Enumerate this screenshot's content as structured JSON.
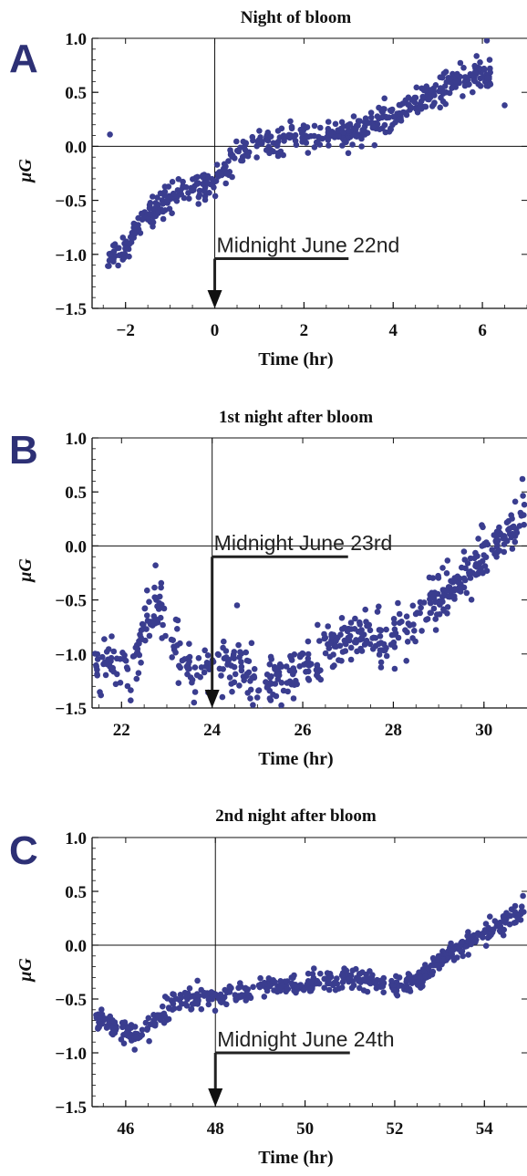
{
  "figure": {
    "colors": {
      "points": "#3a3d8f",
      "letters": "#2d3075",
      "axes": "#111111"
    }
  },
  "chart_data": [
    {
      "type": "scatter",
      "panel_label": "A",
      "title": "Night of bloom",
      "xlabel": "Time (hr)",
      "ylabel": "μG",
      "xlim": [
        -2.75,
        7.0
      ],
      "ylim": [
        -1.5,
        1.0
      ],
      "xticks": [
        -2,
        0,
        2,
        4,
        6
      ],
      "yticks": [
        1.0,
        0.5,
        0.0,
        -0.5,
        -1.0,
        -1.5
      ],
      "xtick_labels": [
        "−2",
        "0",
        "2",
        "4",
        "6"
      ],
      "ytick_labels": [
        "1.0",
        "0.5",
        "0.0",
        "−0.5",
        "−1.0",
        "−1.5"
      ],
      "reference_lines": {
        "vertical_x": 0,
        "horizontal_y": 0
      },
      "annotation": {
        "text": "Midnight June 22nd",
        "x": 0,
        "bar_end_x": 3.0,
        "bar_y": -1.04
      },
      "trend": {
        "x": [
          -2.5,
          -2.0,
          -1.5,
          -1.0,
          -0.5,
          0.0,
          0.5,
          1.0,
          2.0,
          3.0,
          4.0,
          5.0,
          5.5,
          6.0
        ],
        "y": [
          -1.12,
          -0.9,
          -0.65,
          -0.45,
          -0.37,
          -0.35,
          -0.1,
          0.02,
          0.1,
          0.12,
          0.28,
          0.5,
          0.62,
          0.65
        ]
      },
      "x_range": [
        -2.4,
        6.2
      ],
      "spread": 0.07,
      "n_points": 520,
      "outliers": {
        "x": [
          -2.35,
          6.1,
          6.5
        ],
        "y": [
          0.11,
          0.98,
          0.38
        ]
      }
    },
    {
      "type": "scatter",
      "panel_label": "B",
      "title": "1st night after bloom",
      "xlabel": "Time (hr)",
      "ylabel": "μG",
      "xlim": [
        21.35,
        30.95
      ],
      "ylim": [
        -1.5,
        1.0
      ],
      "xticks": [
        22,
        24,
        26,
        28,
        30
      ],
      "yticks": [
        1.0,
        0.5,
        0.0,
        -0.5,
        -1.0,
        -1.5
      ],
      "xtick_labels": [
        "22",
        "24",
        "26",
        "28",
        "30"
      ],
      "ytick_labels": [
        "1.0",
        "0.5",
        "0.0",
        "−0.5",
        "−1.0",
        "−1.5"
      ],
      "reference_lines": {
        "vertical_x": 24,
        "horizontal_y": 0
      },
      "annotation": {
        "text": "Midnight June 23rd",
        "x": 24,
        "bar_end_x": 27.0,
        "bar_y": -0.1
      },
      "trend": {
        "x": [
          21.4,
          21.8,
          22.2,
          22.5,
          22.8,
          23.1,
          23.4,
          23.8,
          24.2,
          24.6,
          25.0,
          25.5,
          26.0,
          26.5,
          27.0,
          27.5,
          28.0,
          28.5,
          29.0,
          29.5,
          30.0,
          30.5,
          30.9
        ],
        "y": [
          -1.15,
          -1.05,
          -1.2,
          -0.7,
          -0.55,
          -0.8,
          -1.15,
          -1.1,
          -1.05,
          -1.1,
          -1.3,
          -1.25,
          -1.1,
          -0.95,
          -0.85,
          -0.82,
          -0.9,
          -0.7,
          -0.45,
          -0.3,
          -0.05,
          0.1,
          0.25
        ]
      },
      "x_range": [
        21.4,
        30.9
      ],
      "spread": 0.12,
      "n_points": 560,
      "outliers": {
        "x": [
          22.75,
          24.55,
          23.6,
          30.85
        ],
        "y": [
          -0.18,
          -0.55,
          -1.45,
          0.62
        ]
      }
    },
    {
      "type": "scatter",
      "panel_label": "C",
      "title": "2nd night after  bloom",
      "xlabel": "Time (hr)",
      "ylabel": "μG",
      "xlim": [
        45.25,
        54.95
      ],
      "ylim": [
        -1.5,
        1.0
      ],
      "xticks": [
        46,
        48,
        50,
        52,
        54
      ],
      "yticks": [
        1.0,
        0.5,
        0.0,
        -0.5,
        -1.0,
        -1.5
      ],
      "xtick_labels": [
        "46",
        "48",
        "50",
        "52",
        "54"
      ],
      "ytick_labels": [
        "1.0",
        "0.5",
        "0.0",
        "−0.5",
        "−1.0",
        "−1.5"
      ],
      "reference_lines": {
        "vertical_x": 48,
        "horizontal_y": 0
      },
      "annotation": {
        "text": "Midnight June 24th",
        "x": 48,
        "bar_end_x": 51.0,
        "bar_y": -1.0
      },
      "trend": {
        "x": [
          45.3,
          45.8,
          46.2,
          46.6,
          47.0,
          47.5,
          48.0,
          48.5,
          49.0,
          50.0,
          51.0,
          52.0,
          52.5,
          53.0,
          53.5,
          54.0,
          54.5,
          54.9
        ],
        "y": [
          -0.65,
          -0.75,
          -0.85,
          -0.75,
          -0.55,
          -0.48,
          -0.48,
          -0.45,
          -0.4,
          -0.35,
          -0.3,
          -0.4,
          -0.32,
          -0.15,
          0.0,
          0.1,
          0.22,
          0.33
        ]
      },
      "x_range": [
        45.3,
        54.9
      ],
      "spread": 0.05,
      "n_points": 540,
      "outliers": {
        "x": [
          46.2,
          47.6,
          49.7
        ],
        "y": [
          -0.97,
          -0.33,
          -0.3
        ]
      }
    }
  ]
}
